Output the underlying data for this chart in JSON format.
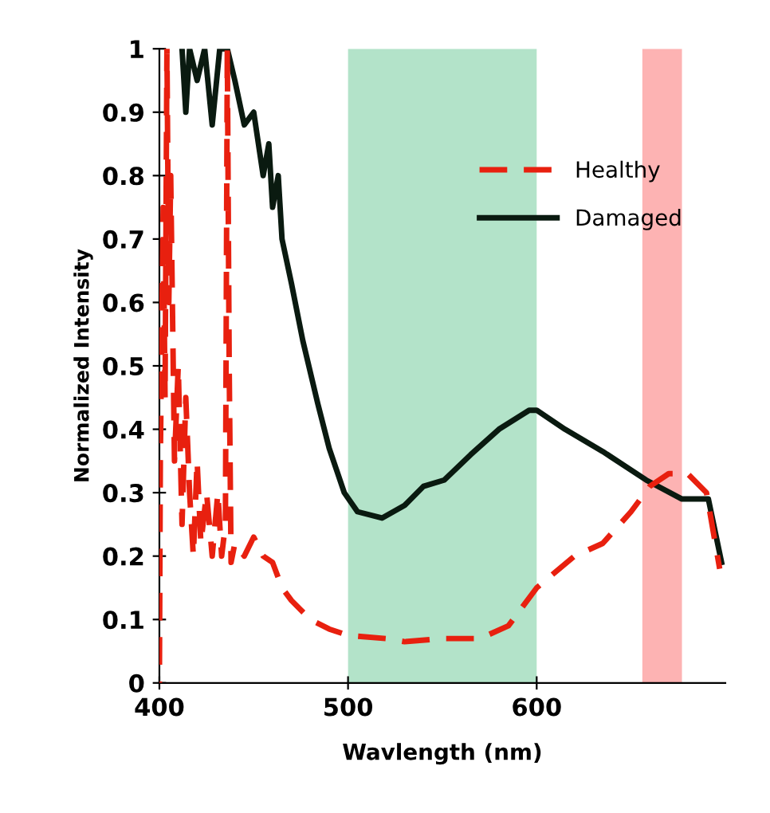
{
  "chart_data": {
    "type": "line",
    "xlabel": "Wavlength (nm)",
    "ylabel": "Normalized Intensity",
    "xlim": [
      400,
      700
    ],
    "xticks": [
      400,
      500,
      600
    ],
    "ylim": [
      0,
      1
    ],
    "yticks": [
      0,
      0.1,
      0.2,
      0.3,
      0.4,
      0.5,
      0.6,
      0.7,
      0.8,
      0.9,
      1
    ],
    "grid": false,
    "legend": "top right",
    "bands": [
      {
        "axis": "x",
        "from": 500,
        "to": 600,
        "color": "#b3e3c9"
      },
      {
        "axis": "x",
        "from": 656,
        "to": 677,
        "color": "#fdb3b3"
      }
    ],
    "series": [
      {
        "name": "Healthy",
        "color": "#e8200f",
        "line_style": "dashed",
        "x": [
          400,
          400.5,
          402,
          403,
          404,
          405,
          406,
          408,
          410,
          412,
          414,
          416,
          418,
          420,
          422,
          425,
          428,
          431,
          433,
          435,
          436,
          437,
          438,
          440,
          445,
          450,
          455,
          460,
          465,
          470,
          480,
          490,
          500,
          520,
          530,
          550,
          570,
          585,
          600,
          620,
          635,
          650,
          660,
          670,
          680,
          690,
          697
        ],
        "values": [
          0,
          0.35,
          0.75,
          0.45,
          1.0,
          0.6,
          0.8,
          0.35,
          0.5,
          0.25,
          0.45,
          0.3,
          0.2,
          0.35,
          0.22,
          0.3,
          0.2,
          0.3,
          0.2,
          0.25,
          1.0,
          0.5,
          0.19,
          0.22,
          0.2,
          0.23,
          0.2,
          0.19,
          0.15,
          0.13,
          0.1,
          0.085,
          0.075,
          0.07,
          0.065,
          0.07,
          0.07,
          0.09,
          0.15,
          0.2,
          0.22,
          0.27,
          0.31,
          0.33,
          0.33,
          0.3,
          0.18
        ]
      },
      {
        "name": "Damaged",
        "color": "#0a1a10",
        "line_style": "solid",
        "x": [
          412,
          414,
          416,
          420,
          424,
          428,
          432,
          436,
          440,
          445,
          450,
          455,
          458,
          460,
          463,
          465,
          470,
          476,
          484,
          490,
          498,
          505,
          518,
          530,
          540,
          551,
          565,
          580,
          596,
          600,
          615,
          635,
          658,
          677,
          691,
          698
        ],
        "values": [
          1,
          0.9,
          1,
          0.95,
          1,
          0.88,
          1,
          1,
          0.95,
          0.88,
          0.9,
          0.8,
          0.85,
          0.75,
          0.8,
          0.7,
          0.63,
          0.54,
          0.44,
          0.37,
          0.3,
          0.27,
          0.26,
          0.28,
          0.31,
          0.32,
          0.36,
          0.4,
          0.43,
          0.43,
          0.4,
          0.365,
          0.32,
          0.29,
          0.29,
          0.19
        ]
      }
    ]
  }
}
